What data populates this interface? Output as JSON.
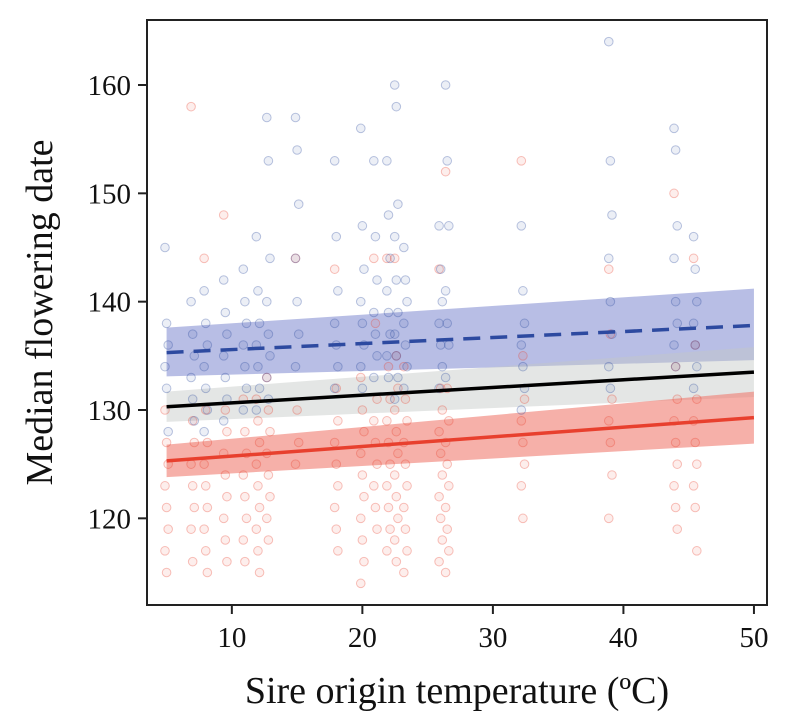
{
  "chart_data": {
    "type": "scatter",
    "title": "",
    "xlabel": "Sire origin temperature (ºC)",
    "ylabel": "Median flowering date",
    "xlim": [
      3.5,
      51
    ],
    "ylim": [
      112,
      166
    ],
    "xticks": [
      10,
      20,
      30,
      40,
      50
    ],
    "yticks": [
      120,
      130,
      140,
      150,
      160
    ],
    "grid": false,
    "legend": "none",
    "x_positions": [
      5,
      7,
      8,
      9.5,
      11,
      12,
      12.8,
      15,
      18,
      20,
      21,
      22,
      22.6,
      23.3,
      26,
      26.5,
      32.3,
      39,
      44,
      45.5
    ],
    "series": [
      {
        "color": "#2d4aa0",
        "line_style": "dashed",
        "fit": {
          "x": [
            5,
            50
          ],
          "y": [
            135.3,
            137.8
          ]
        },
        "ci_band": {
          "x": [
            5,
            50
          ],
          "lower": [
            133.1,
            134.6
          ],
          "upper": [
            137.6,
            141.2
          ]
        },
        "points": [
          {
            "x": 5,
            "y": [
              145,
              138,
              136,
              134,
              132,
              128
            ]
          },
          {
            "x": 7,
            "y": [
              140,
              137,
              135,
              133,
              131,
              129
            ]
          },
          {
            "x": 8,
            "y": [
              141,
              138,
              136,
              134,
              132,
              130,
              128
            ]
          },
          {
            "x": 9.5,
            "y": [
              142,
              139,
              137,
              135,
              133,
              131,
              129
            ]
          },
          {
            "x": 11,
            "y": [
              143,
              140,
              138,
              136,
              134,
              132,
              130
            ]
          },
          {
            "x": 12,
            "y": [
              146,
              141,
              138,
              136,
              134,
              132,
              130
            ]
          },
          {
            "x": 12.8,
            "y": [
              157,
              153,
              144,
              140,
              137,
              135,
              133,
              131
            ]
          },
          {
            "x": 15,
            "y": [
              157,
              154,
              149,
              144,
              140,
              137,
              134
            ]
          },
          {
            "x": 18,
            "y": [
              153,
              146,
              141,
              138,
              136,
              134,
              132
            ]
          },
          {
            "x": 20,
            "y": [
              156,
              147,
              143,
              140,
              138,
              136,
              134,
              132
            ]
          },
          {
            "x": 21,
            "y": [
              153,
              146,
              142,
              139,
              137,
              135,
              133
            ]
          },
          {
            "x": 22,
            "y": [
              153,
              148,
              144,
              141,
              139,
              137,
              135,
              133
            ]
          },
          {
            "x": 22.6,
            "y": [
              160,
              158,
              149,
              146,
              142,
              139,
              137,
              135,
              133,
              131
            ]
          },
          {
            "x": 23.3,
            "y": [
              145,
              142,
              140,
              138,
              136,
              134,
              132
            ]
          },
          {
            "x": 26,
            "y": [
              147,
              143,
              140,
              138,
              136,
              134,
              132
            ]
          },
          {
            "x": 26.5,
            "y": [
              160,
              153,
              147,
              141,
              138,
              136,
              133
            ]
          },
          {
            "x": 32.3,
            "y": [
              147,
              141,
              138,
              136,
              134,
              132,
              130
            ]
          },
          {
            "x": 39,
            "y": [
              164,
              153,
              148,
              144,
              140,
              137,
              134,
              132
            ]
          },
          {
            "x": 44,
            "y": [
              156,
              154,
              147,
              144,
              140,
              138,
              136,
              134
            ]
          },
          {
            "x": 45.5,
            "y": [
              146,
              143,
              140,
              138,
              136,
              134,
              132
            ]
          }
        ]
      },
      {
        "color": "#000000",
        "line_style": "solid",
        "fit": {
          "x": [
            5,
            50
          ],
          "y": [
            130.3,
            133.5
          ]
        },
        "ci_band": {
          "x": [
            5,
            50
          ],
          "lower": [
            128.9,
            131.2
          ],
          "upper": [
            131.7,
            135.8
          ]
        }
      },
      {
        "color": "#e8402e",
        "line_style": "solid",
        "fit": {
          "x": [
            5,
            50
          ],
          "y": [
            125.3,
            129.3
          ]
        },
        "ci_band": {
          "x": [
            5,
            50
          ],
          "lower": [
            123.8,
            126.9
          ],
          "upper": [
            126.8,
            131.7
          ]
        },
        "points": [
          {
            "x": 5,
            "y": [
              130,
              127,
              125,
              123,
              121,
              119,
              117,
              115
            ]
          },
          {
            "x": 7,
            "y": [
              158,
              129,
              127,
              125,
              123,
              121,
              119,
              116
            ]
          },
          {
            "x": 8,
            "y": [
              144,
              130,
              127,
              125,
              123,
              121,
              119,
              117,
              115
            ]
          },
          {
            "x": 9.5,
            "y": [
              148,
              130,
              128,
              126,
              124,
              122,
              120,
              118,
              116
            ]
          },
          {
            "x": 11,
            "y": [
              131,
              128,
              126,
              124,
              122,
              120,
              118,
              116
            ]
          },
          {
            "x": 12,
            "y": [
              131,
              129,
              127,
              125,
              123,
              121,
              119,
              117,
              115
            ]
          },
          {
            "x": 12.8,
            "y": [
              133,
              130,
              128,
              126,
              124,
              122,
              120,
              118
            ]
          },
          {
            "x": 15,
            "y": [
              144,
              130,
              127,
              125
            ]
          },
          {
            "x": 18,
            "y": [
              143,
              132,
              129,
              127,
              125,
              123,
              121,
              119,
              117
            ]
          },
          {
            "x": 20,
            "y": [
              133,
              130,
              128,
              126,
              124,
              122,
              120,
              118,
              116,
              114
            ]
          },
          {
            "x": 21,
            "y": [
              144,
              138,
              131,
              129,
              127,
              125,
              123,
              121,
              119
            ]
          },
          {
            "x": 22,
            "y": [
              144,
              134,
              131,
              129,
              127,
              125,
              123,
              121,
              119,
              117
            ]
          },
          {
            "x": 22.6,
            "y": [
              144,
              135,
              132,
              130,
              128,
              126,
              124,
              122,
              120,
              118,
              116
            ]
          },
          {
            "x": 23.3,
            "y": [
              134,
              131,
              129,
              127,
              125,
              123,
              121,
              119,
              117,
              115
            ]
          },
          {
            "x": 26,
            "y": [
              143,
              132,
              130,
              128,
              126,
              124,
              122,
              120,
              118,
              116
            ]
          },
          {
            "x": 26.5,
            "y": [
              152,
              132,
              129,
              127,
              125,
              123,
              121,
              119,
              117,
              115
            ]
          },
          {
            "x": 32.3,
            "y": [
              153,
              135,
              131,
              129,
              127,
              125,
              123,
              120
            ]
          },
          {
            "x": 39,
            "y": [
              143,
              137,
              131,
              129,
              127,
              124,
              120
            ]
          },
          {
            "x": 44,
            "y": [
              150,
              134,
              131,
              129,
              127,
              125,
              123,
              121,
              119
            ]
          },
          {
            "x": 45.5,
            "y": [
              144,
              136,
              131,
              129,
              127,
              125,
              123,
              121,
              117
            ]
          }
        ]
      }
    ]
  }
}
